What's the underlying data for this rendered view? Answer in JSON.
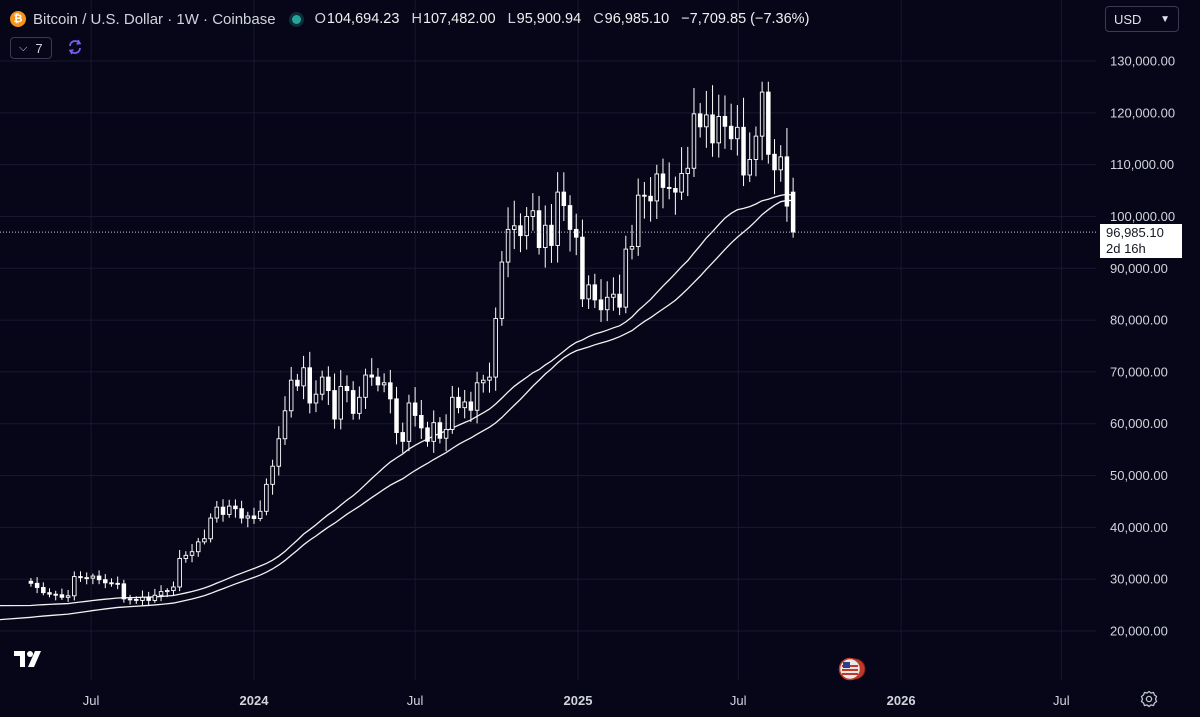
{
  "header": {
    "symbol_icon": "bitcoin-icon",
    "title": "Bitcoin / U.S. Dollar · 1W · Coinbase",
    "ohlc": [
      {
        "key": "O",
        "value": "104,694.23"
      },
      {
        "key": "H",
        "value": "107,482.00"
      },
      {
        "key": "L",
        "value": "95,900.94"
      },
      {
        "key": "C",
        "value": "96,985.10"
      }
    ],
    "change": "−7,709.85 (−7.36%)"
  },
  "indicator_count": "7",
  "currency": "USD",
  "price_tag": {
    "price": "96,985.10",
    "countdown": "2d 16h"
  },
  "colors": {
    "background": "#060618",
    "candles": "#ffffff",
    "grid": "#1b1b33",
    "status": "#26a69a",
    "bitcoin": "#f7931a"
  },
  "chart_data": {
    "type": "candlestick",
    "timeframe": "1W",
    "y_axis": {
      "ticks": [
        "20,000.00",
        "30,000.00",
        "40,000.00",
        "50,000.00",
        "60,000.00",
        "70,000.00",
        "80,000.00",
        "90,000.00",
        "100,000.00",
        "110,000.00",
        "120,000.00",
        "130,000.00"
      ],
      "tick_values": [
        20000,
        30000,
        40000,
        50000,
        60000,
        70000,
        80000,
        90000,
        100000,
        110000,
        120000,
        130000
      ],
      "range": [
        12000,
        134000
      ]
    },
    "x_axis": {
      "ticks": [
        {
          "label": "Jul",
          "bold": false
        },
        {
          "label": "2024",
          "bold": true
        },
        {
          "label": "Jul",
          "bold": false
        },
        {
          "label": "2025",
          "bold": true
        },
        {
          "label": "Jul",
          "bold": false
        },
        {
          "label": "2026",
          "bold": true
        },
        {
          "label": "Jul",
          "bold": false
        }
      ],
      "tick_dates": [
        "2023-07-01",
        "2024-01-01",
        "2024-07-01",
        "2025-01-01",
        "2025-07-01",
        "2026-01-01",
        "2026-07-01"
      ],
      "range": [
        "2023-04-17",
        "2026-10-12"
      ]
    },
    "candles_start": "2023-04-24",
    "closes": [
      29200,
      28400,
      27400,
      27100,
      27000,
      26500,
      26800,
      30500,
      30300,
      30200,
      30600,
      29900,
      29300,
      29200,
      29100,
      26200,
      26100,
      25900,
      26500,
      25900,
      26900,
      27600,
      27800,
      28500,
      34000,
      34600,
      35300,
      37200,
      37800,
      41800,
      43900,
      42500,
      44100,
      43600,
      41800,
      42200,
      41700,
      43100,
      48300,
      51800,
      57100,
      62500,
      68400,
      67300,
      70800,
      64000,
      65700,
      69000,
      66400,
      60900,
      67200,
      66400,
      62000,
      65100,
      69400,
      69000,
      67500,
      67900,
      64800,
      58300,
      56600,
      64000,
      61600,
      59200,
      56600,
      60200,
      57200,
      58900,
      65100,
      63100,
      64200,
      62600,
      67900,
      68400,
      69000,
      80300,
      91200,
      97500,
      98200,
      96300,
      100000,
      101100,
      94000,
      98300,
      94400,
      104700,
      102100,
      97500,
      96000,
      84100,
      86800,
      83900,
      82000,
      84400,
      85000,
      82500,
      93700,
      94200,
      104100,
      103900,
      103000,
      108200,
      105600,
      105400,
      104700,
      108300,
      109300,
      119800,
      117300,
      119600,
      114200,
      119300,
      117400,
      115000,
      117200,
      108000,
      111000,
      115500,
      124000,
      112000,
      109000,
      111500,
      102000,
      96985
    ],
    "highs_hint": {
      "period_high": 126000,
      "last_week_high": 107482,
      "last_week_low": 95900.94
    },
    "ma_fast_length": "approx 50-week",
    "ma_slow_length": "approx 60-week"
  }
}
